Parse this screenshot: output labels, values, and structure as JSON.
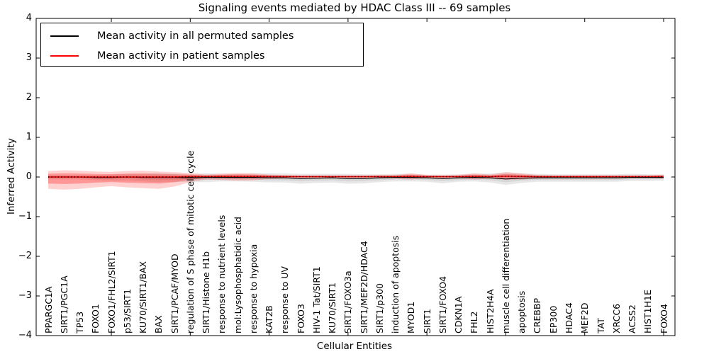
{
  "chart_data": {
    "type": "line",
    "title": "Signaling events mediated by HDAC Class III -- 69 samples",
    "xlabel": "Cellular Entities",
    "ylabel": "Inferred Activity",
    "ylim": [
      -4,
      4
    ],
    "yticks": [
      4,
      3,
      2,
      1,
      0,
      -1,
      -2,
      -3,
      -4
    ],
    "xtick_major_positions": [
      5,
      10,
      15,
      20,
      25,
      30,
      35,
      40
    ],
    "grid": false,
    "legend_position": "upper left",
    "categories": [
      "PPARGC1A",
      "SIRT1/PGC1A",
      "TP53",
      "FOXO1",
      "FOXO1/FHL2/SIRT1",
      "p53/SIRT1",
      "KU70/SIRT1/BAX",
      "BAX",
      "SIRT1/PCAF/MYOD",
      "regulation of S phase of mitotic cell cycle",
      "SIRT1/Histone H1b",
      "response to nutrient levels",
      "mol:Lysophosphatidic acid",
      "response to hypoxia",
      "KAT2B",
      "response to UV",
      "FOXO3",
      "HIV-1 Tat/SIRT1",
      "KU70/SIRT1",
      "SIRT1/FOXO3a",
      "SIRT1/MEF2D/HDAC4",
      "SIRT1/p300",
      "induction of apoptosis",
      "MYOD1",
      "SIRT1",
      "SIRT1/FOXO4",
      "CDKN1A",
      "FHL2",
      "HIST2H4A",
      "muscle cell differentiation",
      "apoptosis",
      "CREBBP",
      "EP300",
      "HDAC4",
      "MEF2D",
      "TAT",
      "XRCC6",
      "ACSS2",
      "HIST1H1E",
      "FOXO4"
    ],
    "series": [
      {
        "name": "Mean activity in all permuted samples",
        "color": "#000000",
        "style": "solid",
        "values": [
          0,
          0,
          0,
          -0.01,
          -0.01,
          0,
          -0.01,
          -0.01,
          -0.01,
          -0.02,
          -0.01,
          -0.01,
          -0.01,
          -0.01,
          -0.02,
          -0.02,
          -0.04,
          -0.03,
          -0.02,
          -0.04,
          -0.04,
          -0.02,
          -0.01,
          -0.01,
          -0.02,
          -0.04,
          -0.02,
          -0.01,
          -0.02,
          -0.05,
          -0.03,
          -0.02,
          -0.02,
          -0.02,
          -0.02,
          -0.02,
          -0.02,
          -0.01,
          -0.01,
          -0.01
        ],
        "band_upper": [
          0.05,
          0.05,
          0.05,
          0.06,
          0.07,
          0.08,
          0.09,
          0.11,
          0.1,
          0.09,
          0.11,
          0.09,
          0.08,
          0.1,
          0.12,
          0.11,
          0.12,
          0.11,
          0.1,
          0.12,
          0.11,
          0.09,
          0.09,
          0.09,
          0.08,
          0.1,
          0.09,
          0.09,
          0.11,
          0.17,
          0.12,
          0.1,
          0.09,
          0.09,
          0.09,
          0.09,
          0.09,
          0.09,
          0.08,
          0.07
        ],
        "band_lower": [
          0.06,
          0.06,
          0.06,
          0.07,
          0.08,
          0.09,
          0.1,
          0.12,
          0.11,
          0.11,
          0.12,
          0.1,
          0.1,
          0.11,
          0.12,
          0.12,
          0.13,
          0.12,
          0.12,
          0.13,
          0.12,
          0.11,
          0.1,
          0.1,
          0.1,
          0.12,
          0.1,
          0.1,
          0.12,
          0.15,
          0.12,
          0.1,
          0.1,
          0.1,
          0.1,
          0.1,
          0.1,
          0.09,
          0.09,
          0.08
        ],
        "band_color": "#808080"
      },
      {
        "name": "Mean activity in patient samples",
        "color": "#ff0000",
        "style": "solid-with-black-dotted-overlay",
        "values": [
          0,
          0,
          0,
          0,
          0,
          0,
          0,
          0,
          0,
          0.01,
          0.01,
          0.015,
          0.015,
          0.015,
          0.01,
          0.01,
          0.01,
          0.01,
          0.01,
          0.01,
          0.01,
          0.01,
          0.01,
          0.015,
          0.01,
          0.01,
          0.01,
          0.015,
          0.01,
          0.02,
          0.015,
          0.01,
          0.01,
          0.01,
          0.01,
          0.01,
          0.01,
          0.01,
          0.01,
          0.01
        ],
        "band_upper": [
          0.15,
          0.17,
          0.16,
          0.14,
          0.13,
          0.15,
          0.16,
          0.14,
          0.12,
          0.09,
          0.05,
          0.07,
          0.09,
          0.08,
          0.05,
          0.04,
          0.03,
          0.03,
          0.03,
          0.03,
          0.03,
          0.04,
          0.04,
          0.08,
          0.04,
          0.03,
          0.04,
          0.08,
          0.05,
          0.1,
          0.08,
          0.04,
          0.03,
          0.03,
          0.03,
          0.03,
          0.03,
          0.03,
          0.03,
          0.05
        ],
        "band_lower": [
          0.3,
          0.32,
          0.3,
          0.26,
          0.23,
          0.26,
          0.28,
          0.3,
          0.24,
          0.14,
          0.07,
          0.09,
          0.11,
          0.1,
          0.06,
          0.05,
          0.04,
          0.04,
          0.04,
          0.04,
          0.04,
          0.04,
          0.05,
          0.08,
          0.04,
          0.04,
          0.04,
          0.08,
          0.05,
          0.09,
          0.08,
          0.05,
          0.04,
          0.04,
          0.04,
          0.04,
          0.04,
          0.04,
          0.04,
          0.05
        ],
        "band_color": "#ff0000"
      }
    ]
  },
  "colors": {
    "frame": "#000000",
    "permuted_line": "#000000",
    "patient_line": "#ff0000",
    "permuted_band": "#808080",
    "patient_band": "#ff0000"
  }
}
